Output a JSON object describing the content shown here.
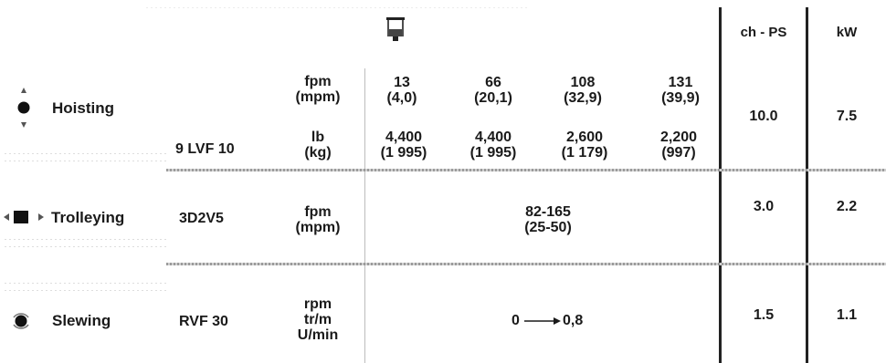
{
  "header": {
    "power_ch_ps": "ch - PS",
    "power_kw": "kW"
  },
  "rows": [
    {
      "label": "Hoisting",
      "model": "9 LVF 10",
      "unit_speed": "fpm\n(mpm)",
      "unit_load": "lb\n(kg)",
      "speeds": [
        {
          "fpm": "13",
          "mpm": "(4,0)"
        },
        {
          "fpm": "66",
          "mpm": "(20,1)"
        },
        {
          "fpm": "108",
          "mpm": "(32,9)"
        },
        {
          "fpm": "131",
          "mpm": "(39,9)"
        }
      ],
      "loads": [
        {
          "lb": "4,400",
          "kg": "(1 995)"
        },
        {
          "lb": "4,400",
          "kg": "(1 995)"
        },
        {
          "lb": "2,600",
          "kg": "(1 179)"
        },
        {
          "lb": "2,200",
          "kg": "(997)"
        }
      ],
      "ch_ps": "10.0",
      "kw": "7.5"
    },
    {
      "label": "Trolleying",
      "model": "3D2V5",
      "unit": "fpm\n(mpm)",
      "value_top": "82-165",
      "value_bottom": "(25-50)",
      "ch_ps": "3.0",
      "kw": "2.2"
    },
    {
      "label": "Slewing",
      "model": "RVF 30",
      "unit": "rpm\ntr/m\nU/min",
      "value_from": "0",
      "value_to": "0,8",
      "ch_ps": "1.5",
      "kw": "1.1"
    }
  ],
  "icons": {
    "header": "crane-hook-icon",
    "hoisting": "hoisting-arrows-icon",
    "trolleying": "trolleying-arrows-icon",
    "slewing": "slewing-rotation-icon"
  }
}
